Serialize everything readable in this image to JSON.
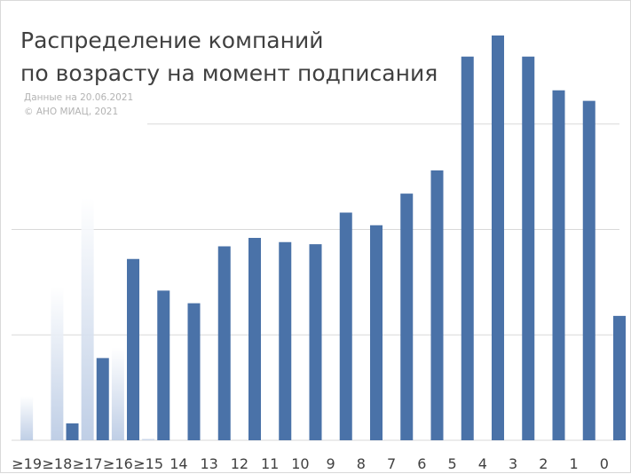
{
  "chart_data": {
    "type": "bar",
    "title_lines": [
      "Распределение компаний",
      "по возрасту на момент подписания"
    ],
    "notes": [
      "Данные на 20.06.2021",
      "© АНО МИАЦ, 2021"
    ],
    "categories": [
      "≥19",
      "≥18",
      "≥17",
      "≥16",
      "≥15",
      "14",
      "13",
      "12",
      "11",
      "10",
      "9",
      "8",
      "7",
      "6",
      "5",
      "4",
      "3",
      "2",
      "1",
      "0"
    ],
    "values": [
      0,
      0.8,
      3.9,
      8.6,
      7.1,
      6.5,
      9.2,
      9.6,
      9.4,
      9.3,
      10.8,
      10.2,
      11.7,
      12.8,
      18.2,
      19.2,
      18.2,
      16.6,
      16.1,
      5.9
    ],
    "ylim": [
      0,
      20
    ],
    "grid": true,
    "bar_color": "#4a72a8",
    "axis_color": "#d9d9d9",
    "text_color": "#404040",
    "note_color": "#b3b3b3",
    "watermark_values": [
      2.1,
      7.3,
      11.5,
      4.4,
      0.1
    ]
  }
}
